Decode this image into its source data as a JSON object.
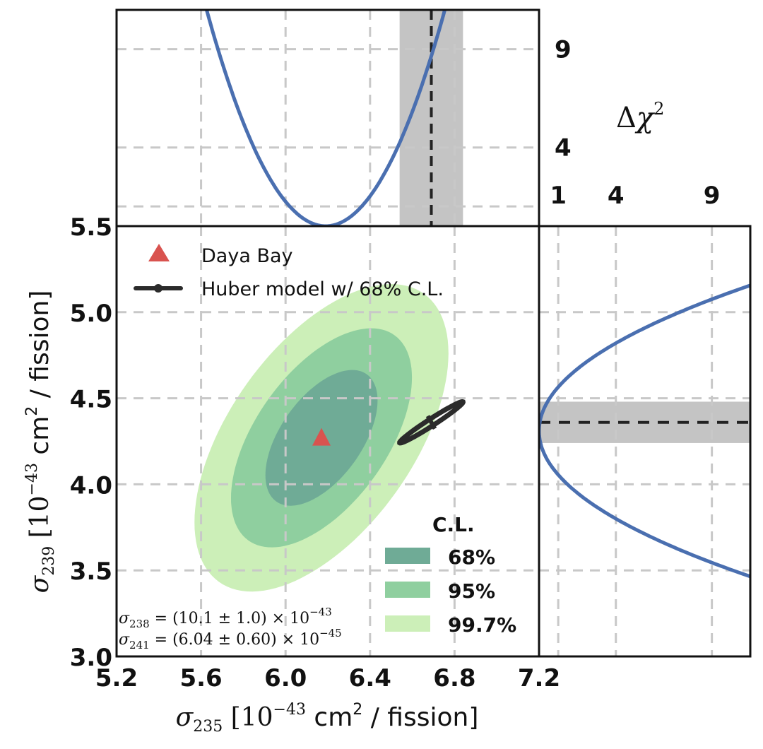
{
  "chart_data": {
    "type": "contour",
    "title": "",
    "main_panel": {
      "xlabel": {
        "symbol": "σ",
        "sub": "235",
        "text": " [10",
        "exp": "−43",
        "unit": " cm",
        "unit_exp": "2",
        "tail": " / fission]"
      },
      "ylabel": {
        "symbol": "σ",
        "sub": "239",
        "text": " [10",
        "exp": "−43",
        "unit": " cm",
        "unit_exp": "2",
        "tail": " / fission]"
      },
      "xlim": [
        5.2,
        7.2
      ],
      "ylim": [
        3.0,
        5.5
      ],
      "xticks": [
        5.2,
        5.6,
        6.0,
        6.4,
        6.8,
        7.2
      ],
      "xtick_labels": [
        "5.2",
        "5.6",
        "6.0",
        "6.4",
        "6.8",
        "7.2"
      ],
      "yticks": [
        3.0,
        3.5,
        4.0,
        4.5,
        5.0,
        5.5
      ],
      "ytick_labels": [
        "3.0",
        "3.5",
        "4.0",
        "4.5",
        "5.0",
        "5.5"
      ],
      "grid": true,
      "best_fit": {
        "label": "Daya Bay",
        "sigma235": 6.17,
        "sigma239": 4.27,
        "marker": "triangle",
        "color": "#d9534f"
      },
      "contours": {
        "center": [
          6.17,
          4.27
        ],
        "sigma235": 0.175,
        "sigma239": 0.26,
        "correlation": 0.55,
        "levels": [
          {
            "label": "68%",
            "delta_chi2": 2.3,
            "color": "#6fab96"
          },
          {
            "label": "95%",
            "delta_chi2": 5.99,
            "color": "#8fcf9f"
          },
          {
            "label": "99.7%",
            "delta_chi2": 11.8,
            "color": "#ccefb8"
          }
        ]
      },
      "model": {
        "label": "Huber model w/ 68% C.L.",
        "sigma235": 6.69,
        "sigma239": 4.36,
        "sigma235_err": 0.15,
        "sigma239_err": 0.12,
        "correlation": 0.98,
        "color": "#2b2b2b"
      },
      "legend": {
        "placement": "top-left"
      },
      "cl_legend": {
        "title": "C.L.",
        "placement": "bottom-right"
      },
      "annotations": [
        {
          "symbol": "σ",
          "sub": "238",
          "text": " = (10.1 ± 1.0) × 10",
          "exp": "−43"
        },
        {
          "symbol": "σ",
          "sub": "241",
          "text": " = (6.04 ± 0.60) × 10",
          "exp": "−45"
        }
      ]
    },
    "top_panel": {
      "type": "line",
      "x_variable": "sigma235",
      "ylabel": "Δχ²",
      "ylim": [
        0,
        11
      ],
      "yticks": [
        1,
        4,
        9
      ],
      "ytick_labels": [
        "1",
        "4",
        "9"
      ],
      "profile": {
        "center": 6.19,
        "sigma": 0.17,
        "color": "#4a6fb0"
      },
      "model_band": {
        "center": 6.69,
        "low": 6.54,
        "high": 6.84
      }
    },
    "right_panel": {
      "type": "line",
      "y_variable": "sigma239",
      "xlabel": "Δχ²",
      "xlim": [
        0,
        11
      ],
      "xticks": [
        1,
        4,
        9
      ],
      "xtick_labels": [
        "1",
        "4",
        "9"
      ],
      "profile": {
        "center": 4.31,
        "sigma": 0.255,
        "color": "#4a6fb0"
      },
      "model_band": {
        "center": 4.36,
        "low": 4.24,
        "high": 4.48
      }
    },
    "chi2_label": {
      "delta": "Δ",
      "chi": "χ",
      "exp": "2"
    }
  }
}
